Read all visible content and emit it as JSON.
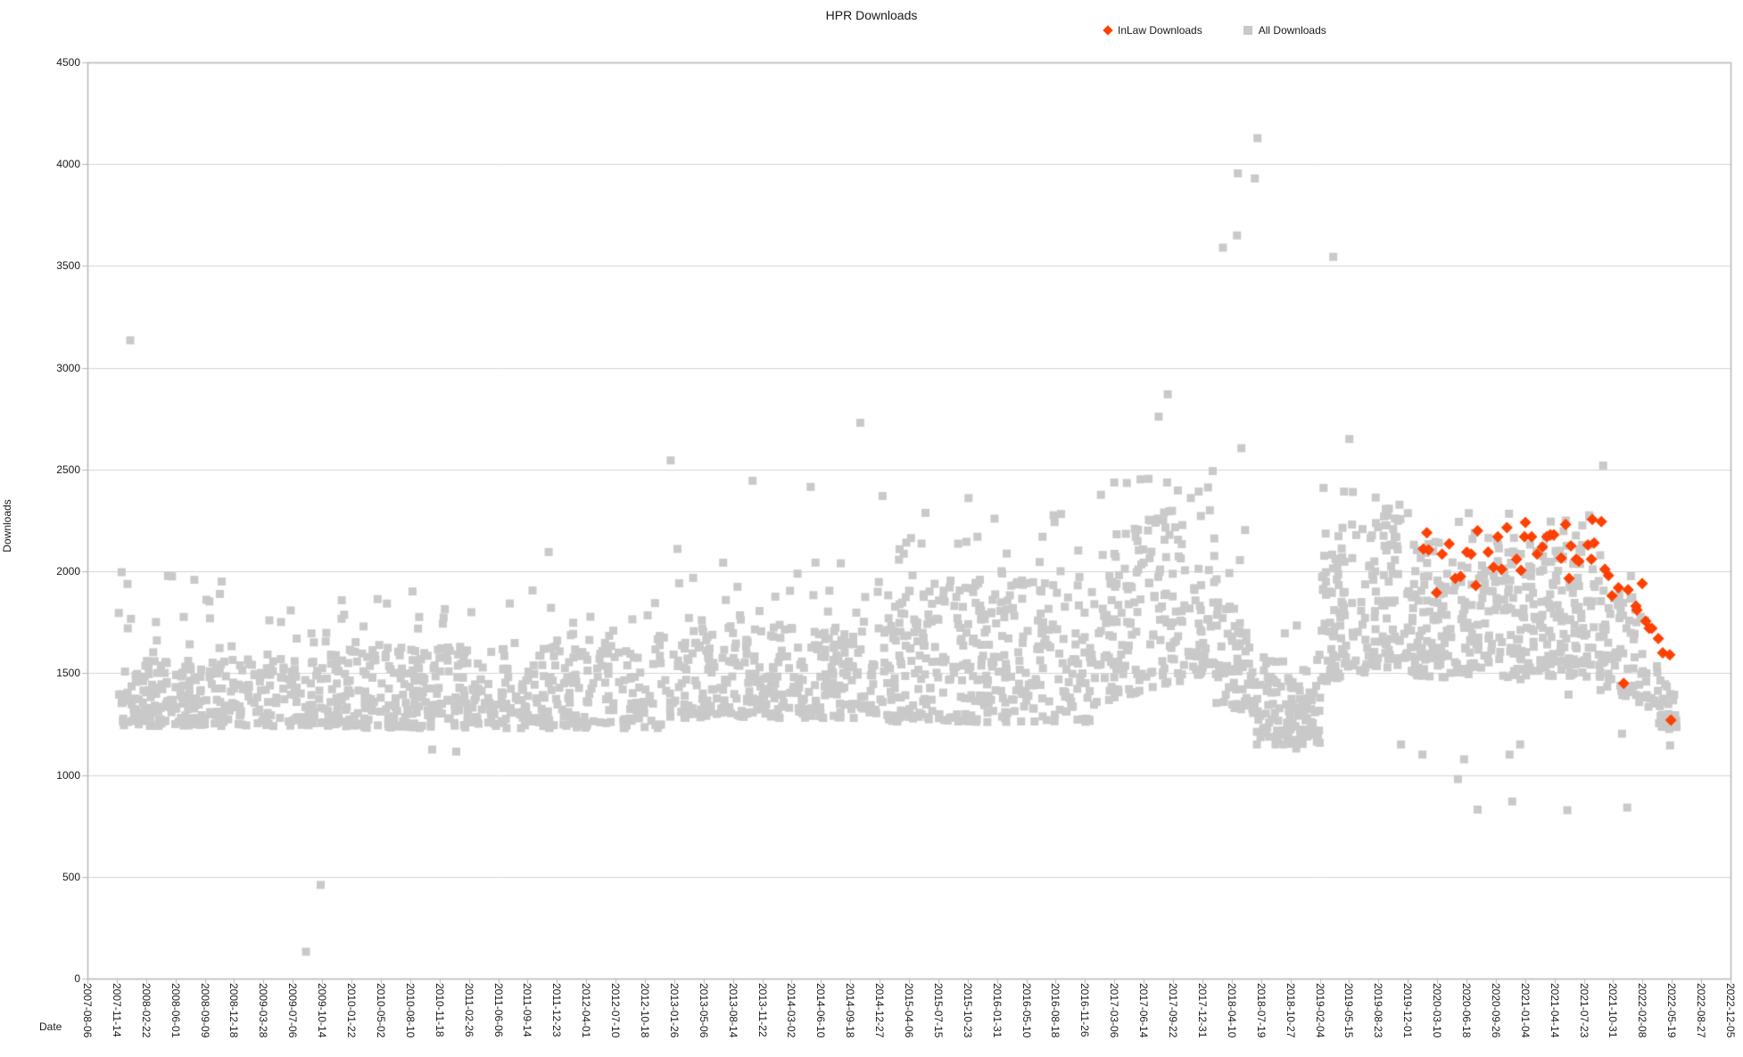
{
  "title": "HPR Downloads",
  "legend": [
    {
      "label": "InLaw Downloads",
      "color": "#ff4000",
      "marker": "diamond"
    },
    {
      "label": "All Downloads",
      "color": "#c9c9c9",
      "marker": "square"
    }
  ],
  "axes": {
    "x_title": "Date",
    "y_title": "Downloads",
    "y_ticks": [
      0,
      500,
      1000,
      1500,
      2000,
      2500,
      3000,
      3500,
      4000,
      4500
    ],
    "x_ticks": [
      "2007-08-06",
      "2007-11-14",
      "2008-02-22",
      "2008-06-01",
      "2008-09-09",
      "2008-12-18",
      "2009-03-28",
      "2009-07-06",
      "2009-10-14",
      "2010-01-22",
      "2010-05-02",
      "2010-08-10",
      "2010-11-18",
      "2011-02-26",
      "2011-06-06",
      "2011-09-14",
      "2011-12-23",
      "2012-04-01",
      "2012-07-10",
      "2012-10-18",
      "2013-01-26",
      "2013-05-06",
      "2013-08-14",
      "2013-11-22",
      "2014-03-02",
      "2014-06-10",
      "2014-09-18",
      "2014-12-27",
      "2015-04-06",
      "2015-07-15",
      "2015-10-23",
      "2016-01-31",
      "2016-05-10",
      "2016-08-18",
      "2016-11-26",
      "2017-03-06",
      "2017-06-14",
      "2017-09-22",
      "2017-12-31",
      "2018-04-10",
      "2018-07-19",
      "2018-10-27",
      "2019-02-04",
      "2019-05-15",
      "2019-08-23",
      "2019-12-01",
      "2020-03-10",
      "2020-06-18",
      "2020-09-26",
      "2021-01-04",
      "2021-04-14",
      "2021-07-23",
      "2021-10-31",
      "2022-02-08",
      "2022-05-19",
      "2022-08-27",
      "2022-12-05"
    ]
  },
  "chart_data": {
    "type": "scatter",
    "title": "HPR Downloads",
    "xlabel": "Date",
    "ylabel": "Downloads",
    "x_range": [
      "2007-08-06",
      "2022-12-05"
    ],
    "ylim": [
      0,
      4500
    ],
    "grid": "horizontal",
    "grid_color": "#d4d4d4",
    "border_color": "#b8b8b8",
    "legend_position": "top-right",
    "seed": 1337,
    "series": [
      {
        "name": "InLaw Downloads",
        "marker": "diamond",
        "color": "#ff4000",
        "points": [
          [
            "2020-01-23",
            2110
          ],
          [
            "2020-02-04",
            2190
          ],
          [
            "2020-02-10",
            2105
          ],
          [
            "2020-03-08",
            1895
          ],
          [
            "2020-03-27",
            2085
          ],
          [
            "2020-04-20",
            2135
          ],
          [
            "2020-05-11",
            1965
          ],
          [
            "2020-05-29",
            1975
          ],
          [
            "2020-06-19",
            2095
          ],
          [
            "2020-07-04",
            2085
          ],
          [
            "2020-07-20",
            1930
          ],
          [
            "2020-07-26",
            2200
          ],
          [
            "2020-08-31",
            2095
          ],
          [
            "2020-09-18",
            2020
          ],
          [
            "2020-10-03",
            2170
          ],
          [
            "2020-10-16",
            2010
          ],
          [
            "2020-11-03",
            2215
          ],
          [
            "2020-12-06",
            2060
          ],
          [
            "2020-12-21",
            2005
          ],
          [
            "2021-01-02",
            2170
          ],
          [
            "2021-01-05",
            2240
          ],
          [
            "2021-01-26",
            2170
          ],
          [
            "2021-02-14",
            2085
          ],
          [
            "2021-03-04",
            2120
          ],
          [
            "2021-03-19",
            2170
          ],
          [
            "2021-03-31",
            2180
          ],
          [
            "2021-04-12",
            2180
          ],
          [
            "2021-05-07",
            2065
          ],
          [
            "2021-05-22",
            2230
          ],
          [
            "2021-06-03",
            1965
          ],
          [
            "2021-06-09",
            2125
          ],
          [
            "2021-06-27",
            2060
          ],
          [
            "2021-07-06",
            2050
          ],
          [
            "2021-08-06",
            2130
          ],
          [
            "2021-08-18",
            2060
          ],
          [
            "2021-08-21",
            2255
          ],
          [
            "2021-08-27",
            2140
          ],
          [
            "2021-09-21",
            2245
          ],
          [
            "2021-10-03",
            2010
          ],
          [
            "2021-10-15",
            1980
          ],
          [
            "2021-10-27",
            1880
          ],
          [
            "2021-11-18",
            1920
          ],
          [
            "2021-12-06",
            1450
          ],
          [
            "2021-12-21",
            1910
          ],
          [
            "2022-01-17",
            1830
          ],
          [
            "2022-01-20",
            1810
          ],
          [
            "2022-02-07",
            1940
          ],
          [
            "2022-02-19",
            1755
          ],
          [
            "2022-03-03",
            1720
          ],
          [
            "2022-03-12",
            1720
          ],
          [
            "2022-04-03",
            1670
          ],
          [
            "2022-04-18",
            1600
          ],
          [
            "2022-05-12",
            1590
          ],
          [
            "2022-05-16",
            1270
          ]
        ]
      },
      {
        "name": "All Downloads",
        "marker": "square",
        "color": "#c9c9c9",
        "cloud_segments": [
          {
            "from": "2007-11-14",
            "to": "2008-12-31",
            "count": 190,
            "v_low": 1240,
            "v_high": 1560,
            "tail_max": 2010,
            "tail_count": 22
          },
          {
            "from": "2009-01-01",
            "to": "2009-12-31",
            "count": 150,
            "v_low": 1240,
            "v_high": 1580,
            "tail_max": 1860,
            "tail_count": 15
          },
          {
            "from": "2010-01-01",
            "to": "2012-12-31",
            "count": 430,
            "v_low": 1230,
            "v_high": 1620,
            "tail_max": 1910,
            "tail_count": 42
          },
          {
            "from": "2013-01-01",
            "to": "2014-12-27",
            "count": 300,
            "v_low": 1280,
            "v_high": 1720,
            "tail_max": 2120,
            "tail_count": 32
          },
          {
            "from": "2014-12-27",
            "to": "2016-12-31",
            "count": 350,
            "v_low": 1260,
            "v_high": 1930,
            "tail_max": 2290,
            "tail_count": 38
          },
          {
            "from": "2017-01-01",
            "to": "2018-02-10",
            "count": 200,
            "v_low": 1350,
            "v_high": 2100,
            "v_low_end": 1500,
            "v_high_end": 2430,
            "tail_max": 2500,
            "tail_count": 14
          },
          {
            "from": "2018-02-10",
            "to": "2018-07-01",
            "count": 70,
            "v_low": 1350,
            "v_high": 2000,
            "v_low_end": 1300,
            "v_high_end": 1600,
            "tail_max": 2250,
            "tail_count": 5
          },
          {
            "from": "2018-07-01",
            "to": "2019-02-10",
            "count": 115,
            "v_low": 1150,
            "v_high": 1520,
            "tail_max": 1760,
            "tail_count": 9
          },
          {
            "from": "2019-02-10",
            "to": "2019-12-01",
            "count": 165,
            "v_low": 1450,
            "v_high": 2150,
            "v_low_end": 1550,
            "v_high_end": 2300,
            "tail_max": 2400,
            "tail_count": 12
          },
          {
            "from": "2019-12-01",
            "to": "2021-09-20",
            "count": 370,
            "v_low": 1480,
            "v_high": 2130,
            "tail_max": 2290,
            "tail_count": 26
          },
          {
            "from": "2021-09-20",
            "to": "2022-03-01",
            "count": 70,
            "v_low": 1430,
            "v_high": 1960,
            "v_low_end": 1330,
            "v_high_end": 1760,
            "tail_max": 2060,
            "tail_count": 4
          },
          {
            "from": "2022-03-01",
            "to": "2022-06-05",
            "count": 28,
            "v_low": 1260,
            "v_high": 1600,
            "v_low_end": 1200,
            "v_high_end": 1420
          }
        ],
        "outlier_points": [
          [
            "2007-12-30",
            3135
          ],
          [
            "2009-08-20",
            132
          ],
          [
            "2009-10-09",
            460
          ],
          [
            "2010-10-24",
            1125
          ],
          [
            "2011-01-14",
            1115
          ],
          [
            "2011-11-25",
            2095
          ],
          [
            "2013-01-14",
            2545
          ],
          [
            "2013-10-20",
            2445
          ],
          [
            "2014-05-06",
            2415
          ],
          [
            "2014-10-22",
            2730
          ],
          [
            "2015-01-06",
            2370
          ],
          [
            "2015-10-26",
            2360
          ],
          [
            "2017-08-04",
            2760
          ],
          [
            "2017-09-04",
            2870
          ],
          [
            "2018-03-11",
            3590
          ],
          [
            "2018-04-28",
            3650
          ],
          [
            "2018-05-01",
            3955
          ],
          [
            "2018-05-13",
            2605
          ],
          [
            "2018-06-28",
            3930
          ],
          [
            "2018-07-07",
            4128
          ],
          [
            "2018-11-16",
            1130
          ],
          [
            "2019-02-17",
            2410
          ],
          [
            "2019-03-22",
            3545
          ],
          [
            "2019-05-16",
            2650
          ],
          [
            "2019-11-08",
            1150
          ],
          [
            "2020-01-20",
            1100
          ],
          [
            "2020-05-20",
            980
          ],
          [
            "2020-06-10",
            1077
          ],
          [
            "2020-07-26",
            830
          ],
          [
            "2020-11-12",
            1100
          ],
          [
            "2020-11-21",
            870
          ],
          [
            "2020-12-18",
            1150
          ],
          [
            "2020-12-19",
            1470
          ],
          [
            "2021-05-28",
            827
          ],
          [
            "2021-06-01",
            1395
          ],
          [
            "2021-09-18",
            1417
          ],
          [
            "2021-09-27",
            2520
          ],
          [
            "2021-11-30",
            1203
          ],
          [
            "2021-12-18",
            840
          ],
          [
            "2022-05-07",
            1348
          ],
          [
            "2022-05-10",
            1226
          ],
          [
            "2022-05-13",
            1145
          ]
        ]
      }
    ]
  }
}
